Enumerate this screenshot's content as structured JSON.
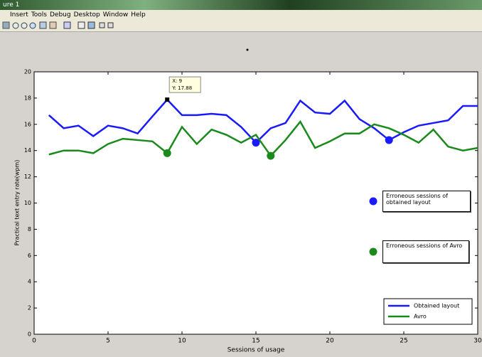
{
  "window": {
    "title": "ure 1",
    "menu": [
      "Insert",
      "Tools",
      "Debug",
      "Desktop",
      "Window",
      "Help"
    ]
  },
  "chart_data": {
    "type": "line",
    "xlabel": "Sessions of usage",
    "ylabel": "Practical text entry rate(wpm)",
    "x": [
      1,
      2,
      3,
      4,
      5,
      6,
      7,
      8,
      9,
      10,
      11,
      12,
      13,
      14,
      15,
      16,
      17,
      18,
      19,
      20,
      21,
      22,
      23,
      24,
      25,
      26,
      27,
      28,
      29,
      30
    ],
    "series": [
      {
        "name": "Obtained layout",
        "color": "#1a1aff",
        "values": [
          16.7,
          15.7,
          15.9,
          15.1,
          15.9,
          15.7,
          15.3,
          16.6,
          17.88,
          16.7,
          16.7,
          16.8,
          16.7,
          15.8,
          14.6,
          15.7,
          16.1,
          17.8,
          16.9,
          16.8,
          17.8,
          16.4,
          15.7,
          14.8,
          15.4,
          15.9,
          16.1,
          16.3,
          17.4,
          17.4
        ]
      },
      {
        "name": "Avro",
        "color": "#1a8a1a",
        "values": [
          13.7,
          14.0,
          14.0,
          13.8,
          14.5,
          14.9,
          14.8,
          14.7,
          13.8,
          15.8,
          14.5,
          15.6,
          15.2,
          14.6,
          15.2,
          13.6,
          14.8,
          16.2,
          14.2,
          14.7,
          15.3,
          15.3,
          16.0,
          15.7,
          15.2,
          14.6,
          15.6,
          14.3,
          14.0,
          14.2
        ]
      }
    ],
    "marked_points": [
      {
        "name": "Erroneous sessions of obtained layout",
        "color": "#1a1aff",
        "x": [
          15,
          24
        ],
        "values": [
          14.6,
          14.8
        ]
      },
      {
        "name": "Erroneous sessions of Avro",
        "color": "#1a8a1a",
        "x": [
          9,
          16
        ],
        "values": [
          13.8,
          13.6
        ]
      }
    ],
    "datatip": [
      "X: 9",
      "Y: 17.88"
    ],
    "xlim": [
      0,
      30
    ],
    "xticks": [
      0,
      5,
      10,
      15,
      20,
      25,
      30
    ],
    "ylim": [
      0,
      20
    ],
    "yticks": [
      0,
      2,
      4,
      6,
      8,
      10,
      12,
      14,
      16,
      18,
      20
    ],
    "legend": "lower right"
  }
}
